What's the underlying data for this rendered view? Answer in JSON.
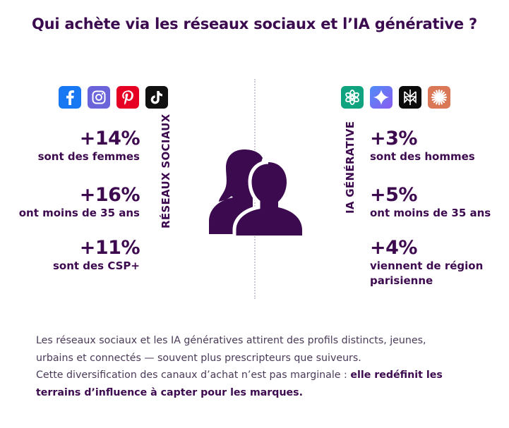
{
  "title": "Qui achète via les réseaux sociaux et l’IA générative ?",
  "social": {
    "section_label": "RÉSEAUX SOCIAUX",
    "icons": [
      "facebook-icon",
      "instagram-icon",
      "pinterest-icon",
      "tiktok-icon"
    ],
    "stats": [
      {
        "value": "+14%",
        "label": "sont des femmes"
      },
      {
        "value": "+16%",
        "label": "ont moins de 35 ans"
      },
      {
        "value": "+11%",
        "label": "sont des CSP+"
      }
    ]
  },
  "ai": {
    "section_label": "IA GÉNÉRATIVE",
    "icons": [
      "chatgpt-icon",
      "gemini-icon",
      "perplexity-icon",
      "claude-icon"
    ],
    "stats": [
      {
        "value": "+3%",
        "label": "sont des hommes"
      },
      {
        "value": "+5%",
        "label": "ont moins de 35 ans"
      },
      {
        "value": "+4%",
        "label_line1": "viennent de région",
        "label_line2": "parisienne"
      }
    ]
  },
  "body": {
    "line1": "Les réseaux sociaux et les IA génératives attirent des profils distincts, jeunes,",
    "line2": "urbains et connectés — souvent plus prescripteurs que suiveurs.",
    "line3_prefix": "Cette diversification des canaux d’achat n’est pas marginale : ",
    "line3_bold": "elle redéfinit les",
    "line4_bold": "terrains d’influence à capter pour les marques."
  },
  "colors": {
    "primary": "#3d0a4f",
    "facebook": "#1877f2",
    "instagram": "#6a63d9",
    "pinterest": "#e60023",
    "tiktok": "#111111",
    "chatgpt": "#10a37f",
    "claude": "#d97757"
  }
}
